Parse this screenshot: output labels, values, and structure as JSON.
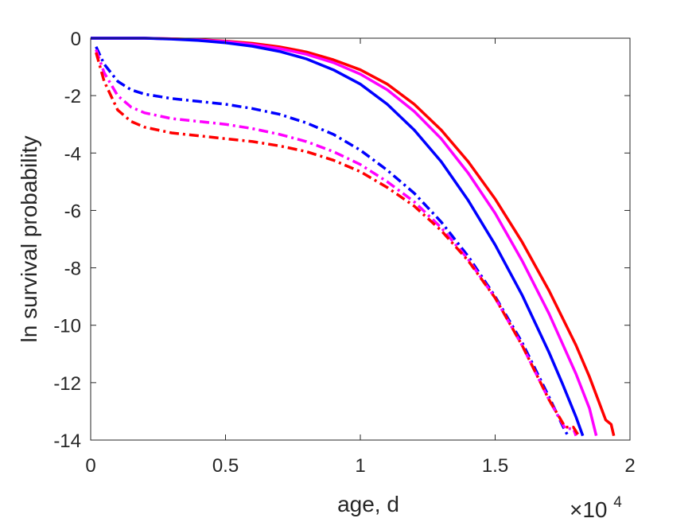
{
  "chart_data": {
    "type": "line",
    "title": "",
    "xlabel": "age, d",
    "ylabel": "ln survival probability",
    "x_exponent_label": {
      "base": "×10",
      "power": "4"
    },
    "xlim": [
      0,
      2
    ],
    "ylim": [
      -14,
      0
    ],
    "xticks": [
      0,
      0.5,
      1,
      1.5,
      2
    ],
    "xtick_labels": [
      "0",
      "0.5",
      "1",
      "1.5",
      "2"
    ],
    "yticks": [
      0,
      -2,
      -4,
      -6,
      -8,
      -10,
      -12,
      -14
    ],
    "ytick_labels": [
      "0",
      "-2",
      "-4",
      "-6",
      "-8",
      "-10",
      "-12",
      "-14"
    ],
    "grid": false,
    "legend": false,
    "series": [
      {
        "color": "#ff0000",
        "style": "solid",
        "x": [
          0.0,
          0.1,
          0.2,
          0.3,
          0.4,
          0.5,
          0.6,
          0.7,
          0.8,
          0.9,
          1.0,
          1.1,
          1.2,
          1.3,
          1.4,
          1.5,
          1.6,
          1.7,
          1.8,
          1.85,
          1.89,
          1.91,
          1.93,
          1.94
        ],
        "y": [
          0.0,
          0.0,
          0.0,
          -0.02,
          -0.05,
          -0.1,
          -0.18,
          -0.3,
          -0.48,
          -0.75,
          -1.1,
          -1.6,
          -2.3,
          -3.2,
          -4.3,
          -5.6,
          -7.1,
          -8.8,
          -10.7,
          -11.8,
          -12.8,
          -13.3,
          -13.45,
          -13.85
        ]
      },
      {
        "color": "#ff00ff",
        "style": "solid",
        "x": [
          0.0,
          0.1,
          0.2,
          0.3,
          0.4,
          0.5,
          0.6,
          0.7,
          0.8,
          0.9,
          1.0,
          1.1,
          1.2,
          1.3,
          1.4,
          1.5,
          1.6,
          1.7,
          1.8,
          1.85,
          1.875
        ],
        "y": [
          0.0,
          0.0,
          0.0,
          -0.02,
          -0.06,
          -0.12,
          -0.22,
          -0.36,
          -0.56,
          -0.85,
          -1.25,
          -1.8,
          -2.55,
          -3.5,
          -4.7,
          -6.1,
          -7.75,
          -9.6,
          -11.7,
          -12.9,
          -13.85
        ]
      },
      {
        "color": "#0000ff",
        "style": "solid",
        "x": [
          0.0,
          0.1,
          0.2,
          0.3,
          0.4,
          0.5,
          0.6,
          0.7,
          0.8,
          0.9,
          1.0,
          1.1,
          1.2,
          1.3,
          1.4,
          1.5,
          1.6,
          1.7,
          1.75,
          1.8,
          1.825
        ],
        "y": [
          0.0,
          0.0,
          0.0,
          -0.03,
          -0.08,
          -0.16,
          -0.28,
          -0.46,
          -0.72,
          -1.1,
          -1.6,
          -2.3,
          -3.2,
          -4.3,
          -5.65,
          -7.2,
          -8.95,
          -10.95,
          -12.05,
          -13.2,
          -13.85
        ]
      },
      {
        "color": "#0000ff",
        "style": "dashdot",
        "x": [
          0.02,
          0.05,
          0.1,
          0.15,
          0.2,
          0.3,
          0.4,
          0.5,
          0.6,
          0.7,
          0.8,
          0.9,
          1.0,
          1.1,
          1.2,
          1.3,
          1.4,
          1.5,
          1.6,
          1.7,
          1.75,
          1.77
        ],
        "y": [
          -0.3,
          -0.9,
          -1.5,
          -1.8,
          -1.95,
          -2.1,
          -2.2,
          -2.3,
          -2.45,
          -2.65,
          -2.95,
          -3.35,
          -3.9,
          -4.6,
          -5.4,
          -6.4,
          -7.6,
          -9.0,
          -10.6,
          -12.5,
          -13.5,
          -13.85
        ]
      },
      {
        "color": "#ff00ff",
        "style": "dashdot",
        "x": [
          0.02,
          0.05,
          0.1,
          0.15,
          0.2,
          0.3,
          0.4,
          0.5,
          0.6,
          0.7,
          0.8,
          0.9,
          1.0,
          1.1,
          1.2,
          1.3,
          1.4,
          1.5,
          1.6,
          1.7,
          1.76,
          1.79,
          1.8
        ],
        "y": [
          -0.4,
          -1.2,
          -2.0,
          -2.4,
          -2.6,
          -2.8,
          -2.9,
          -3.0,
          -3.15,
          -3.35,
          -3.6,
          -3.95,
          -4.4,
          -5.0,
          -5.7,
          -6.6,
          -7.7,
          -9.05,
          -10.7,
          -12.6,
          -13.6,
          -13.6,
          -13.85
        ]
      },
      {
        "color": "#ff0000",
        "style": "dashdot",
        "x": [
          0.02,
          0.05,
          0.1,
          0.15,
          0.2,
          0.3,
          0.4,
          0.5,
          0.6,
          0.7,
          0.8,
          0.9,
          1.0,
          1.1,
          1.2,
          1.3,
          1.4,
          1.5,
          1.6,
          1.7,
          1.76,
          1.79,
          1.81
        ],
        "y": [
          -0.5,
          -1.5,
          -2.5,
          -2.9,
          -3.1,
          -3.3,
          -3.4,
          -3.5,
          -3.6,
          -3.75,
          -3.95,
          -4.25,
          -4.65,
          -5.2,
          -5.85,
          -6.7,
          -7.75,
          -9.05,
          -10.7,
          -12.6,
          -13.55,
          -13.55,
          -13.85
        ]
      }
    ]
  }
}
